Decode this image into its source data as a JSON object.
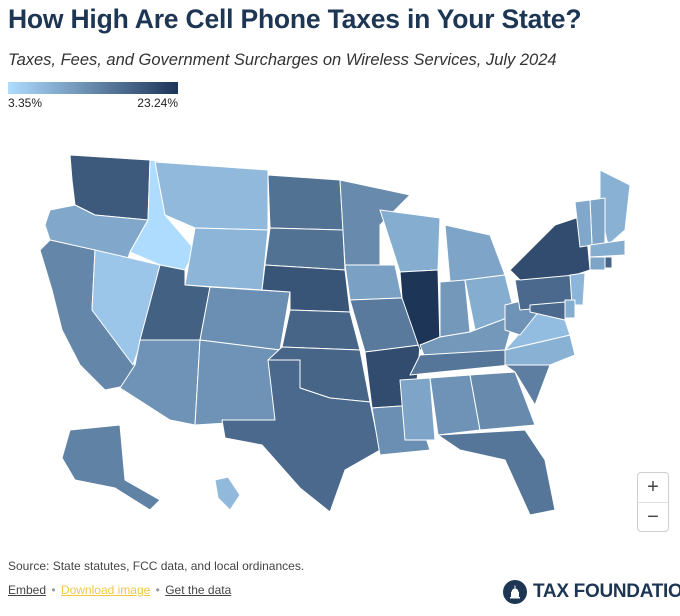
{
  "header": {
    "title": "How High Are Cell Phone Taxes in Your State?",
    "subtitle": "Taxes, Fees, and Government Surcharges on Wireless Services, July 2024"
  },
  "legend": {
    "min_label": "3.35%",
    "max_label": "23.24%",
    "min_color": "#aedcff",
    "max_color": "#1d3557"
  },
  "zoom": {
    "zoom_in": "+",
    "zoom_out": "−"
  },
  "footer": {
    "source": "Source: State statutes, FCC data, and local ordinances.",
    "embed": "Embed",
    "download": "Download image",
    "get_data": "Get the data",
    "separator": "•",
    "brand": "TAX FOUNDATION"
  },
  "map_data": {
    "scale_min": 3.35,
    "scale_max": 23.24,
    "states": {
      "WA": 18.8,
      "OR": 9.5,
      "CA": 13.5,
      "NV": 6.0,
      "ID": 3.35,
      "MT": 7.5,
      "WY": 8.0,
      "UT": 18.0,
      "AZ": 12.0,
      "CO": 12.5,
      "NM": 12.0,
      "ND": 16.0,
      "SD": 16.0,
      "NE": 19.5,
      "KS": 17.5,
      "OK": 17.5,
      "TX": 17.0,
      "MN": 13.0,
      "IA": 10.5,
      "MO": 15.0,
      "AR": 20.5,
      "LA": 12.5,
      "WI": 9.0,
      "IL": 23.24,
      "MI": 10.0,
      "IN": 11.5,
      "OH": 9.0,
      "KY": 11.5,
      "TN": 15.5,
      "MS": 10.0,
      "AL": 12.0,
      "GA": 13.0,
      "FL": 15.5,
      "SC": 14.5,
      "NC": 8.5,
      "VA": 7.0,
      "WV": 12.0,
      "PA": 17.0,
      "NY": 20.5,
      "NJ": 8.0,
      "DE": 9.0,
      "MD": 17.0,
      "ME": 8.5,
      "NH": 10.0,
      "VT": 9.5,
      "MA": 9.0,
      "CT": 10.0,
      "RI": 17.5,
      "AK": 14.0,
      "HI": 7.5
    }
  }
}
